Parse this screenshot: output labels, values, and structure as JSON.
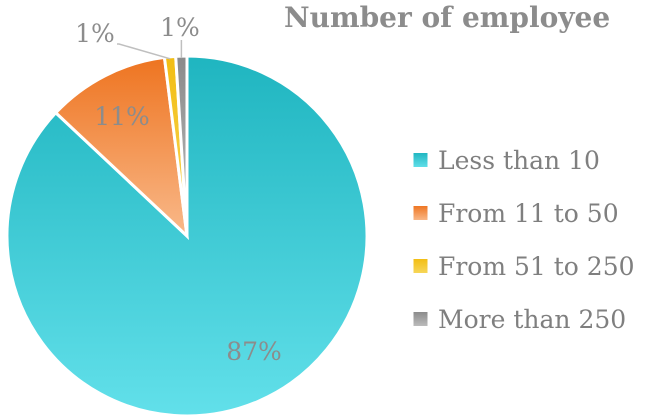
{
  "chart_data": {
    "type": "pie",
    "title": "Number of employee",
    "categories": [
      "Less than 10",
      "From 11 to 50",
      "From 51 to 250",
      "More than 250"
    ],
    "values": [
      87,
      11,
      1,
      1
    ],
    "labels": [
      "87%",
      "11%",
      "1%",
      "1%"
    ],
    "colors": {
      "Less than 10": [
        "#1fb5c0",
        "#62e0ea"
      ],
      "From 11 to 50": [
        "#ee7420",
        "#f9b98a"
      ],
      "From 51 to 250": [
        "#f2bd12",
        "#f7d75b"
      ],
      "More than 250": [
        "#8a8a8a",
        "#bdbdbd"
      ]
    },
    "legend_position": "right"
  }
}
